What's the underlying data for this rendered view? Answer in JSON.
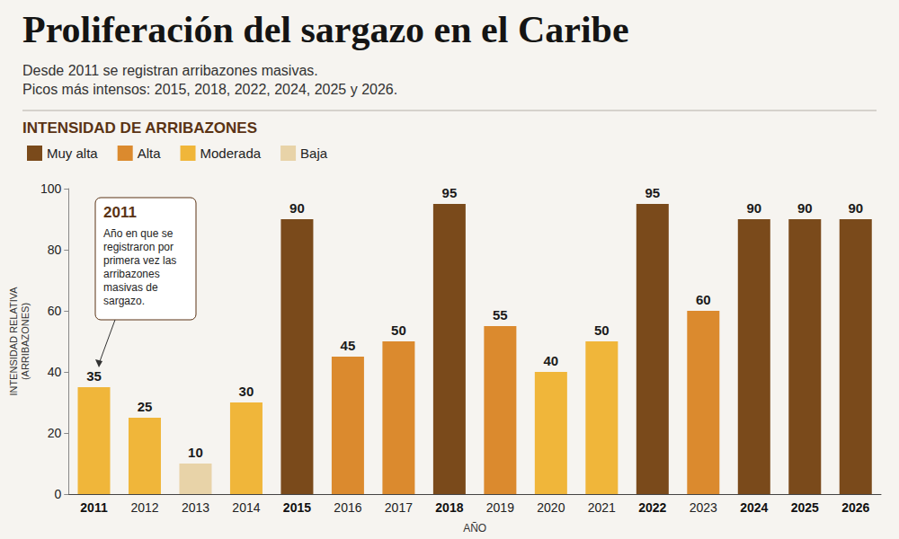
{
  "chart_data": {
    "type": "bar",
    "title": "Proliferación del sargazo en el Caribe",
    "subtitle": [
      "Desde 2011 se registran arribazones masivas.",
      "Picos más intensos: 2015, 2018, 2022, 2024, 2025 y 2026."
    ],
    "legend_title": "INTENSIDAD DE ARRIBAZONES",
    "x_label": "AÑO",
    "y_label": "INTENSIDAD RELATIVA (ARRIBAZONES)",
    "categories": [
      "2011",
      "2012",
      "2013",
      "2014",
      "2015",
      "2016",
      "2017",
      "2018",
      "2019",
      "2020",
      "2021",
      "2022",
      "2023",
      "2024",
      "2025",
      "2026"
    ],
    "series": [
      {
        "name": "Muy alta",
        "color": "#7a4a1b",
        "values": [
          null,
          null,
          null,
          null,
          90,
          null,
          null,
          95,
          null,
          null,
          null,
          95,
          null,
          90,
          90,
          90
        ]
      },
      {
        "name": "Alta",
        "color": "#db8a2e",
        "values": [
          null,
          null,
          null,
          null,
          null,
          45,
          50,
          null,
          55,
          null,
          null,
          null,
          60,
          null,
          null,
          null
        ]
      },
      {
        "name": "Moderada",
        "color": "#f0b63a",
        "values": [
          35,
          25,
          null,
          30,
          null,
          null,
          null,
          null,
          null,
          40,
          50,
          null,
          null,
          null,
          null,
          null
        ]
      },
      {
        "name": "Baja",
        "color": "#e8d3a8",
        "values": [
          null,
          null,
          10,
          null,
          null,
          null,
          null,
          null,
          null,
          null,
          null,
          null,
          null,
          null,
          null,
          null
        ]
      }
    ],
    "ylim": [
      0,
      100
    ],
    "yticks": [
      0,
      20,
      40,
      60,
      80,
      100
    ],
    "grid": false,
    "legend": "top-left",
    "data_labels": true,
    "annotations": [
      {
        "category": "2011",
        "title": "2011",
        "text": "Año en que se registraron por primera vez las arribazones masivas de sargazo."
      }
    ]
  }
}
